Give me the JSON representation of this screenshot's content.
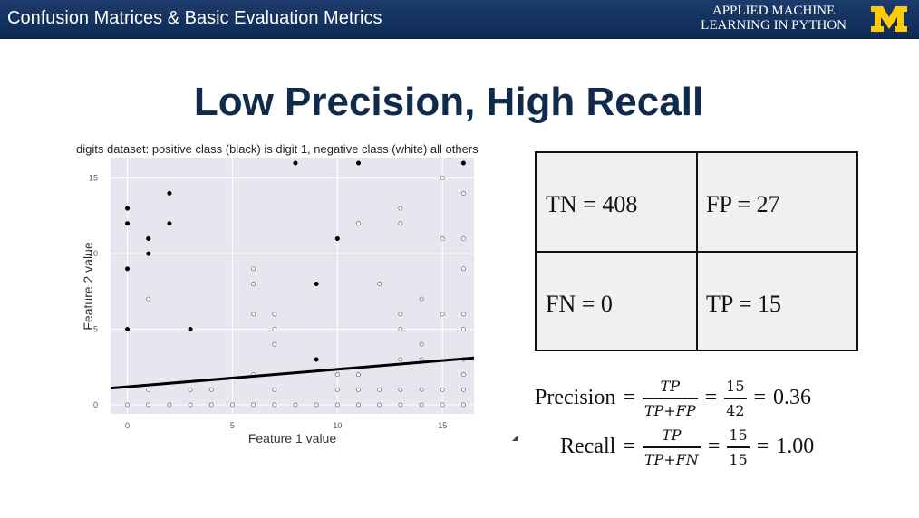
{
  "header": {
    "title": "Confusion Matrices & Basic Evaluation Metrics",
    "brand_line1": "APPLIED MACHINE",
    "brand_line2": "LEARNING IN PYTHON",
    "logo_icon": "university-m-logo-icon",
    "bg_color": "#13335f",
    "logo_color": "#ffcb05"
  },
  "slide": {
    "title": "Low Precision, High Recall"
  },
  "chart_data": {
    "type": "scatter",
    "title": "digits dataset: positive class (black) is digit 1, negative class (white) all others",
    "xlabel": "Feature 1 value",
    "ylabel": "Feature 2 value",
    "xlim": [
      -0.8,
      16.5
    ],
    "ylim": [
      -0.6,
      16.3
    ],
    "xticks": [
      0,
      5,
      10,
      15
    ],
    "yticks": [
      0,
      5,
      10,
      15
    ],
    "grid": true,
    "series": [
      {
        "name": "positive",
        "color": "#000000",
        "points": [
          [
            0,
            13
          ],
          [
            0,
            12
          ],
          [
            0,
            9
          ],
          [
            0,
            5
          ],
          [
            1,
            11
          ],
          [
            1,
            10
          ],
          [
            2,
            14
          ],
          [
            2,
            12
          ],
          [
            3,
            5
          ],
          [
            8,
            16
          ],
          [
            9,
            8
          ],
          [
            9,
            3
          ],
          [
            10,
            11
          ],
          [
            11,
            16
          ],
          [
            16,
            16
          ]
        ]
      },
      {
        "name": "negative",
        "color": "#ffffff",
        "points": [
          [
            0,
            0
          ],
          [
            1,
            0
          ],
          [
            2,
            0
          ],
          [
            3,
            0
          ],
          [
            4,
            0
          ],
          [
            5,
            0
          ],
          [
            6,
            0
          ],
          [
            7,
            0
          ],
          [
            8,
            0
          ],
          [
            9,
            0
          ],
          [
            10,
            0
          ],
          [
            11,
            0
          ],
          [
            12,
            0
          ],
          [
            13,
            0
          ],
          [
            14,
            0
          ],
          [
            15,
            0
          ],
          [
            16,
            0
          ],
          [
            1,
            7
          ],
          [
            1,
            1
          ],
          [
            3,
            1
          ],
          [
            4,
            1
          ],
          [
            6,
            9
          ],
          [
            6,
            8
          ],
          [
            6,
            6
          ],
          [
            6,
            2
          ],
          [
            7,
            6
          ],
          [
            7,
            5
          ],
          [
            7,
            4
          ],
          [
            7,
            1
          ],
          [
            10,
            2
          ],
          [
            10,
            1
          ],
          [
            11,
            12
          ],
          [
            11,
            2
          ],
          [
            11,
            1
          ],
          [
            12,
            8
          ],
          [
            12,
            1
          ],
          [
            13,
            13
          ],
          [
            13,
            12
          ],
          [
            13,
            6
          ],
          [
            13,
            5
          ],
          [
            13,
            3
          ],
          [
            13,
            1
          ],
          [
            14,
            7
          ],
          [
            14,
            4
          ],
          [
            14,
            3
          ],
          [
            14,
            1
          ],
          [
            15,
            15
          ],
          [
            15,
            11
          ],
          [
            15,
            6
          ],
          [
            15,
            1
          ],
          [
            16,
            14
          ],
          [
            16,
            11
          ],
          [
            16,
            9
          ],
          [
            16,
            6
          ],
          [
            16,
            5
          ],
          [
            16,
            3
          ],
          [
            16,
            2
          ],
          [
            16,
            1
          ]
        ]
      }
    ],
    "decision_line": {
      "x": [
        -0.8,
        16.5
      ],
      "y": [
        1.1,
        3.1
      ]
    }
  },
  "matrix": {
    "tn": "TN =  408",
    "fp": "FP =  27",
    "fn": "FN = 0",
    "tp": "TP = 15"
  },
  "precision": {
    "label": "Precision",
    "eq": "=",
    "num": "TP",
    "den": "TP+FP",
    "num2": "15",
    "den2": "42",
    "value": "0.36"
  },
  "recall": {
    "label": "Recall",
    "eq": "=",
    "num": "TP",
    "den": "TP+FN",
    "num2": "15",
    "den2": "15",
    "value": "1.00"
  }
}
